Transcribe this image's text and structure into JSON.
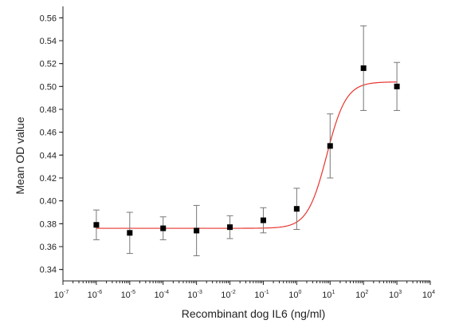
{
  "chart_data": {
    "type": "scatter",
    "title": "",
    "xlabel": "Recombinant dog IL6 (ng/ml)",
    "ylabel": "Mean OD value",
    "x_scale": "log",
    "xlim": [
      1e-07,
      10000
    ],
    "ylim": [
      0.33,
      0.57
    ],
    "x_tick_exponents": [
      -7,
      -6,
      -5,
      -4,
      -3,
      -2,
      -1,
      0,
      1,
      2,
      3,
      4
    ],
    "y_ticks": [
      "0.34",
      "0.36",
      "0.38",
      "0.40",
      "0.42",
      "0.44",
      "0.46",
      "0.48",
      "0.50",
      "0.52",
      "0.54",
      "0.56"
    ],
    "grid": false,
    "legend": "none",
    "colors": {
      "points": "#000000",
      "error_bars": "#777777",
      "fit_curve": "#e8352e"
    },
    "series": [
      {
        "type": "scatter",
        "x": [
          1e-06,
          1e-05,
          0.0001,
          0.001,
          0.01,
          0.1,
          1,
          10,
          100,
          1000
        ],
        "y": [
          0.379,
          0.372,
          0.376,
          0.374,
          0.377,
          0.383,
          0.393,
          0.448,
          0.516,
          0.5
        ],
        "error": [
          0.013,
          0.018,
          0.01,
          0.022,
          0.01,
          0.011,
          0.018,
          0.028,
          0.037,
          0.021
        ]
      },
      {
        "type": "line",
        "fit": "sigmoidal",
        "bottom": 0.376,
        "top": 0.504
      }
    ]
  }
}
